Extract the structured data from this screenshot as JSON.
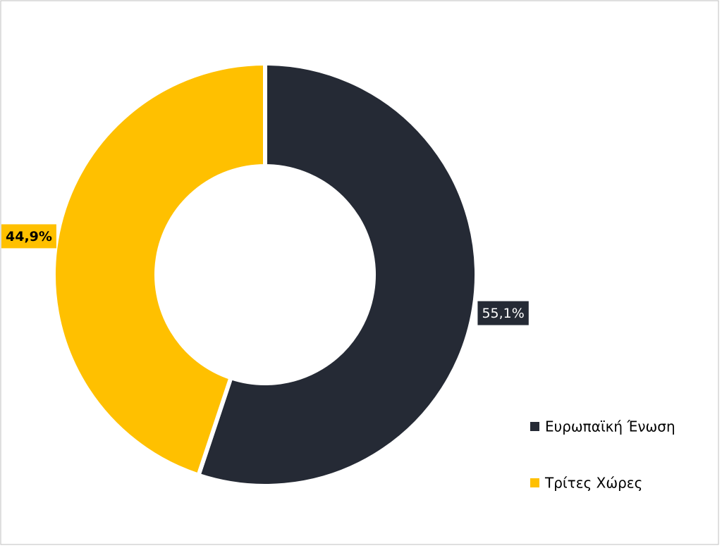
{
  "chart_data": {
    "type": "donut",
    "categories": [
      "Ευρωπαϊκή Ένωση",
      "Τρίτες Χώρες"
    ],
    "values": [
      55.1,
      44.9
    ],
    "value_labels": [
      "55,1%",
      "44,9%"
    ],
    "colors": [
      "#252a35",
      "#ffc000"
    ]
  }
}
